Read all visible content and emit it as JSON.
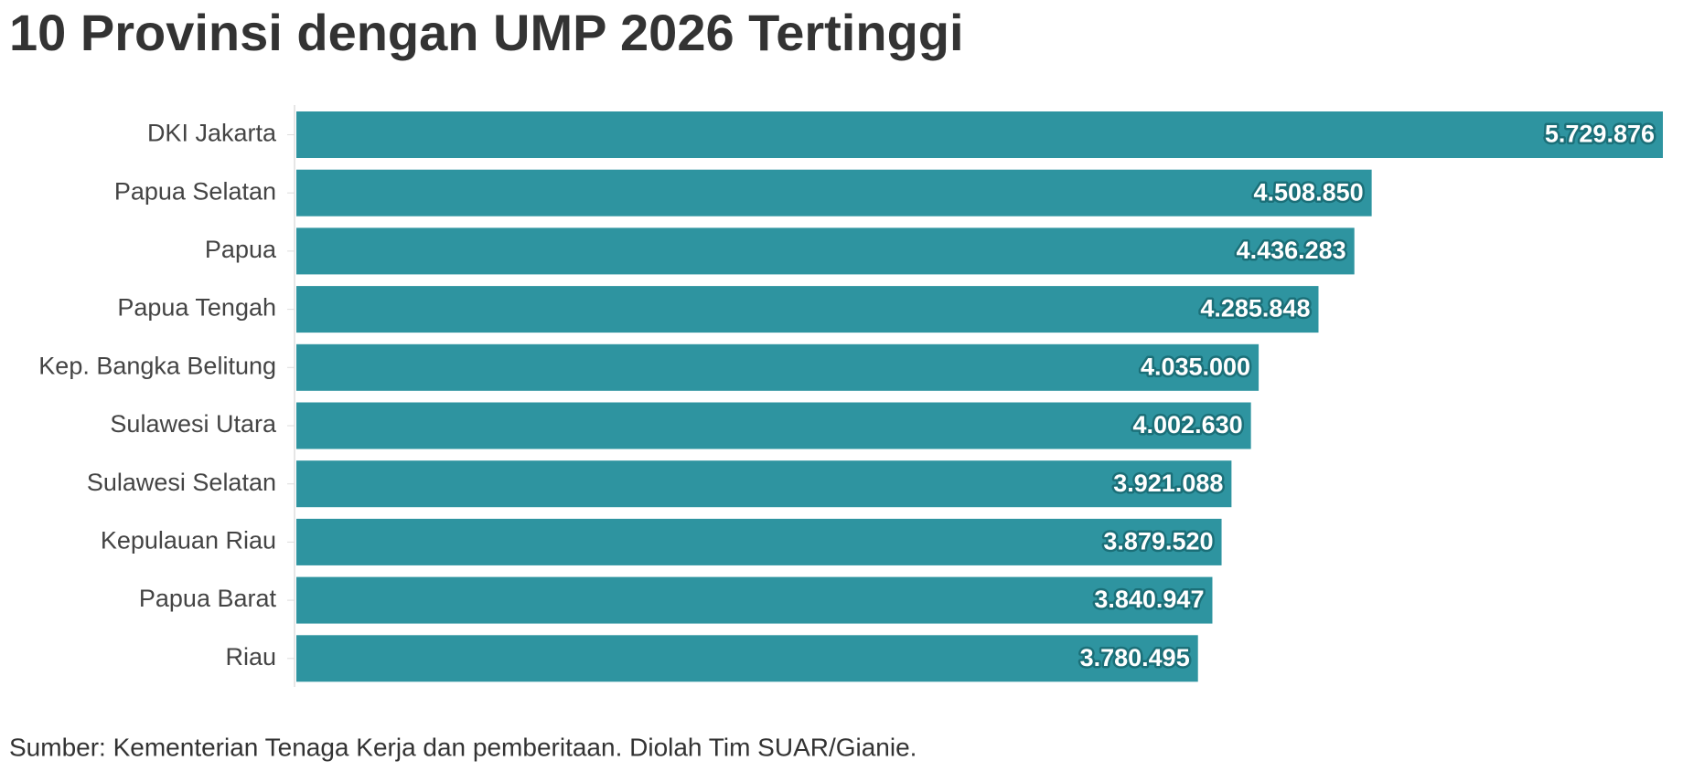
{
  "chart_data": {
    "type": "bar",
    "orientation": "horizontal",
    "title": "10 Provinsi dengan UMP 2026 Tertinggi",
    "source": "Sumber: Kementerian Tenaga Kerja dan pemberitaan. Diolah Tim SUAR/Gianie.",
    "categories": [
      "DKI Jakarta",
      "Papua Selatan",
      "Papua",
      "Papua Tengah",
      "Kep. Bangka Belitung",
      "Sulawesi Utara",
      "Sulawesi Selatan",
      "Kepulauan Riau",
      "Papua Barat",
      "Riau"
    ],
    "values": [
      5729876,
      4508850,
      4436283,
      4285848,
      4035000,
      4002630,
      3921088,
      3879520,
      3840947,
      3780495
    ],
    "value_labels": [
      "5.729.876",
      "4.508.850",
      "4.436.283",
      "4.285.848",
      "4.035.000",
      "4.002.630",
      "3.921.088",
      "3.879.520",
      "3.840.947",
      "3.780.495"
    ],
    "color": "#2e94a0",
    "xlim": [
      0,
      5729876
    ]
  }
}
